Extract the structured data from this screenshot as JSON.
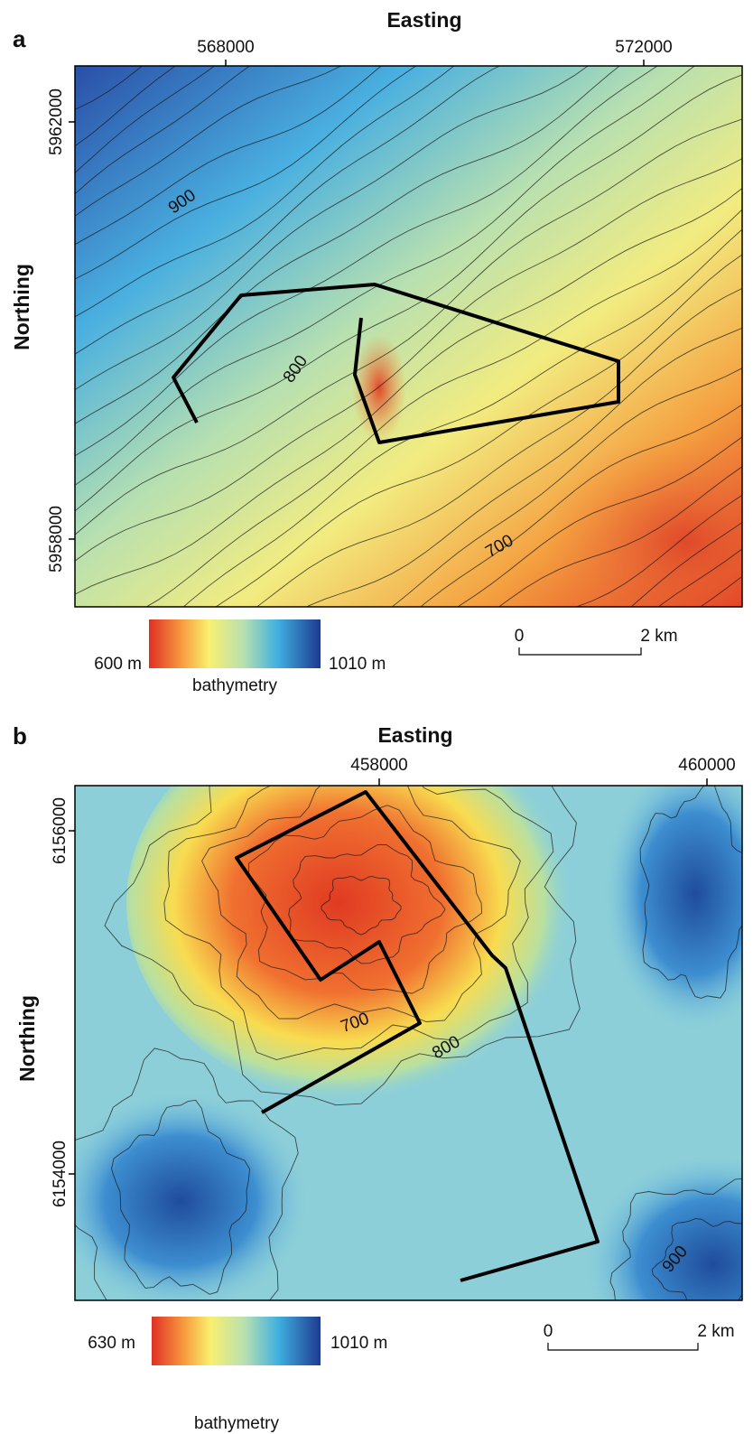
{
  "panels": [
    {
      "label": "a",
      "x_title": "Easting",
      "y_title": "Northing",
      "x_ticks": [
        "568000",
        "572000"
      ],
      "y_ticks": [
        "5962000",
        "5958000"
      ],
      "contour_labels": [
        "900",
        "800",
        "700"
      ],
      "colorbar": {
        "min_label": "600 m",
        "max_label": "1010 m",
        "title": "bathymetry"
      },
      "scale_bar": {
        "start": "0",
        "end": "2 km"
      }
    },
    {
      "label": "b",
      "x_title": "Easting",
      "y_title": "Northing",
      "x_ticks": [
        "458000",
        "460000"
      ],
      "y_ticks": [
        "6156000",
        "6154000"
      ],
      "contour_labels": [
        "700",
        "800",
        "900"
      ],
      "colorbar": {
        "min_label": "630 m",
        "max_label": "1010 m",
        "title": "bathymetry"
      },
      "scale_bar": {
        "start": "0",
        "end": "2 km"
      }
    }
  ]
}
